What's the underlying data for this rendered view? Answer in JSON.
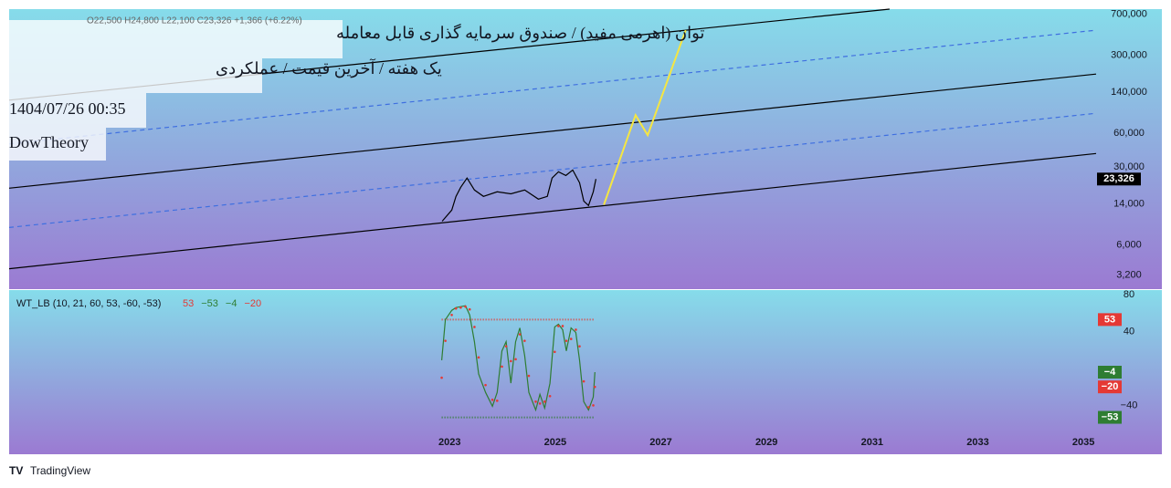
{
  "header": {
    "ohlc": "O22,500  H24,800  L22,100  C23,326  +1,366 (+6.22%)",
    "title": "توان (اهرمی مفید) / صندوق سرمایه گذاری قابل معامله",
    "subtitle": "یک هفته / آخرین قیمت / عملکردی",
    "date": "1404/07/26 00:35",
    "author": "DowTheory"
  },
  "footer": {
    "brand": "TradingView"
  },
  "chart_data": [
    {
      "type": "line",
      "log_scale": true,
      "xlim": [
        2014.66,
        2035.24
      ],
      "ylim": [
        2400,
        780000
      ],
      "yticks": [
        {
          "value": 700000,
          "label": "700,000"
        },
        {
          "value": 300000,
          "label": "300,000"
        },
        {
          "value": 140000,
          "label": "140,000"
        },
        {
          "value": 60000,
          "label": "60,000"
        },
        {
          "value": 30000,
          "label": "30,000"
        },
        {
          "value": 14000,
          "label": "14,000"
        },
        {
          "value": 6000,
          "label": "6,000"
        },
        {
          "value": 3200,
          "label": "3,200"
        }
      ],
      "series": [
        {
          "color": "#000000",
          "x": [
            2014.66,
            2031.33
          ],
          "values": [
            119000,
            780000
          ]
        },
        {
          "color": "#3f6fe0",
          "dashed": true,
          "x": [
            2014.66,
            2035.24
          ],
          "values": [
            48200,
            505000
          ]
        },
        {
          "color": "#000000",
          "x": [
            2014.66,
            2035.24
          ],
          "values": [
            19300,
            204000
          ]
        },
        {
          "color": "#3f6fe0",
          "dashed": true,
          "x": [
            2014.66,
            2035.24
          ],
          "values": [
            8570,
            90800
          ]
        },
        {
          "color": "#000000",
          "x": [
            2014.66,
            2035.24
          ],
          "values": [
            3660,
            39500
          ]
        },
        {
          "color": "#f5e642",
          "x": [
            2025.92,
            2026.52,
            2026.75,
            2027.47
          ],
          "values": [
            13700,
            87300,
            57700,
            505000
          ]
        },
        {
          "color": "#000000",
          "x": [
            2022.86,
            2023.04,
            2023.12,
            2023.21,
            2023.33,
            2023.47,
            2023.64,
            2023.9,
            2024.16,
            2024.42,
            2024.68,
            2024.85,
            2024.94,
            2025.06,
            2025.2,
            2025.33,
            2025.46,
            2025.54,
            2025.63,
            2025.72,
            2025.77
          ],
          "values": [
            9770,
            12300,
            16300,
            19700,
            23800,
            18600,
            16300,
            17900,
            17200,
            18600,
            15400,
            16300,
            23800,
            27100,
            25100,
            28100,
            21600,
            14800,
            13500,
            17900,
            23326
          ],
          "last_label": "23,326"
        }
      ]
    },
    {
      "type": "line",
      "title": "WT_LB (10, 21, 60, 53, -60, -53)",
      "xlim": [
        2014.66,
        2035.24
      ],
      "ylim": [
        -93,
        85
      ],
      "xticks": [
        2023,
        2025,
        2027,
        2029,
        2031,
        2033,
        2035
      ],
      "yticks": [
        80,
        40,
        {
          "value": -40,
          "label": "−40"
        }
      ],
      "series": [
        {
          "color": "#e53935",
          "dotted": true,
          "x": [
            2022.85,
            2025.75
          ],
          "values": [
            53,
            53
          ],
          "last_label": "53"
        },
        {
          "color": "#2e7d32",
          "dotted": true,
          "x": [
            2022.85,
            2025.75
          ],
          "values": [
            -53,
            -53
          ],
          "last_label": "−53"
        },
        {
          "color": "#2e7d32",
          "x": [
            2022.85,
            2022.92,
            2023.04,
            2023.12,
            2023.21,
            2023.3,
            2023.38,
            2023.47,
            2023.55,
            2023.68,
            2023.81,
            2023.9,
            2023.99,
            2024.07,
            2024.16,
            2024.25,
            2024.33,
            2024.42,
            2024.5,
            2024.63,
            2024.71,
            2024.8,
            2024.9,
            2024.99,
            2025.06,
            2025.14,
            2025.21,
            2025.3,
            2025.39,
            2025.46,
            2025.54,
            2025.63,
            2025.72,
            2025.75
          ],
          "values": [
            9,
            53,
            63,
            66,
            67,
            68,
            58,
            29,
            -6,
            -26,
            -41,
            -26,
            19,
            29,
            -16,
            29,
            44,
            14,
            -26,
            -45,
            -28,
            -43,
            -16,
            45,
            48,
            42,
            19,
            44,
            39,
            9,
            -36,
            -45,
            -31,
            -4
          ],
          "last_label": "−4"
        },
        {
          "color": "#e53935",
          "dots": true,
          "x": [
            2022.85,
            2022.92,
            2023.04,
            2023.12,
            2023.21,
            2023.3,
            2023.38,
            2023.47,
            2023.55,
            2023.68,
            2023.81,
            2023.9,
            2023.99,
            2024.07,
            2024.16,
            2024.25,
            2024.33,
            2024.42,
            2024.5,
            2024.63,
            2024.71,
            2024.8,
            2024.9,
            2024.99,
            2025.06,
            2025.14,
            2025.21,
            2025.3,
            2025.39,
            2025.46,
            2025.54,
            2025.63,
            2025.72,
            2025.75
          ],
          "values": [
            -10,
            30,
            58,
            65,
            66,
            67,
            64,
            45,
            12,
            -18,
            -34,
            -35,
            2,
            24,
            8,
            10,
            37,
            30,
            -8,
            -36,
            -38,
            -36,
            -30,
            18,
            46,
            46,
            30,
            32,
            42,
            24,
            -14,
            -42,
            -40,
            -20
          ],
          "last_label": "−20"
        }
      ]
    }
  ]
}
